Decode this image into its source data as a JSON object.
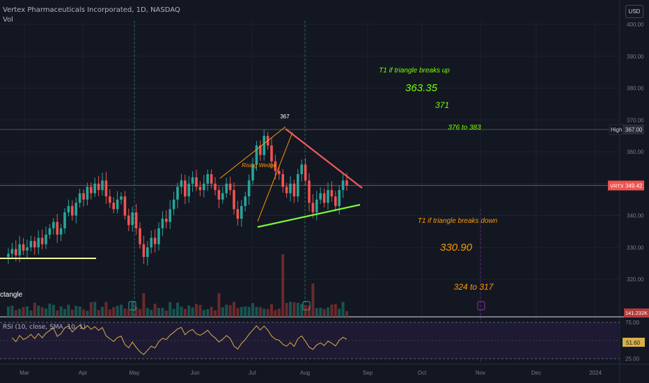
{
  "header": {
    "title": "Vertex Pharmaceuticals Incorporated, 1D, NASDAQ",
    "vol_label": "Vol",
    "currency": "USD"
  },
  "rsi": {
    "legend": "RSI (10, close, SMA, 10, 1)",
    "value": "51.60",
    "levels": [
      "75.00",
      "25.00"
    ]
  },
  "badges": {
    "high_label": "High",
    "high_value": "367.00",
    "ticker": "VRTX",
    "last_value": "349.42",
    "volume_value": "141.232K"
  },
  "colors": {
    "up": "#26a69a",
    "down": "#ef5350",
    "annotation_green": "#76ff03",
    "annotation_orange": "#ff9800",
    "rsi_line": "#d8b04a",
    "resistance_line": "#f55a5a",
    "support_line": "#7cfc3a",
    "rectangle_line": "#fff59d"
  },
  "chart_data": {
    "type": "candlestick",
    "title": "Vertex Pharmaceuticals Incorporated, 1D, NASDAQ",
    "y_axis": {
      "ticks": [
        320,
        330,
        340,
        350,
        360,
        370,
        380,
        390,
        400
      ],
      "tick_labels": [
        "320.00",
        "330.00",
        "340.00",
        "350.00",
        "360.00",
        "370.00",
        "380.00",
        "390.00",
        "400.00"
      ]
    },
    "x_axis": {
      "labels": [
        "Mar",
        "Apr",
        "May",
        "Jun",
        "Jul",
        "Aug",
        "Sep",
        "Oct",
        "Nov",
        "Dec",
        "2024"
      ]
    },
    "closes": [
      328,
      329.5,
      327.5,
      331,
      329,
      330,
      332,
      330,
      333,
      331,
      334,
      336,
      338,
      334,
      336,
      341,
      343,
      340,
      344,
      347,
      345,
      349,
      347,
      350,
      348,
      351,
      346,
      344,
      342,
      345,
      346,
      340,
      337,
      341,
      336,
      331,
      327,
      330,
      333,
      331,
      336,
      339,
      338,
      342,
      345,
      349,
      351,
      346,
      350,
      352,
      349,
      348,
      350,
      353,
      350,
      348,
      345,
      347,
      350,
      348,
      342,
      339,
      343,
      346,
      351,
      356,
      362,
      359,
      365,
      362,
      357,
      354,
      353,
      349,
      347,
      350,
      346,
      353,
      356,
      351,
      344,
      341,
      345,
      347,
      344,
      348,
      346,
      343,
      348,
      351,
      349.42
    ],
    "levels": {
      "high": 367.0,
      "last": 349.42
    },
    "annotations": [
      {
        "text": "T1 if triangle breaks up",
        "color": "green"
      },
      {
        "text": "363.35",
        "color": "green"
      },
      {
        "text": "371",
        "color": "green"
      },
      {
        "text": "376 to 383",
        "color": "green"
      },
      {
        "text": "367",
        "color": "white"
      },
      {
        "text": "Rising Wedge",
        "color": "orange"
      },
      {
        "text": "T1 if triangle breaks down",
        "color": "orange"
      },
      {
        "text": "330.90",
        "color": "orange"
      },
      {
        "text": "324 to 317",
        "color": "orange"
      },
      {
        "text": "ctangle",
        "color": "white"
      }
    ]
  }
}
